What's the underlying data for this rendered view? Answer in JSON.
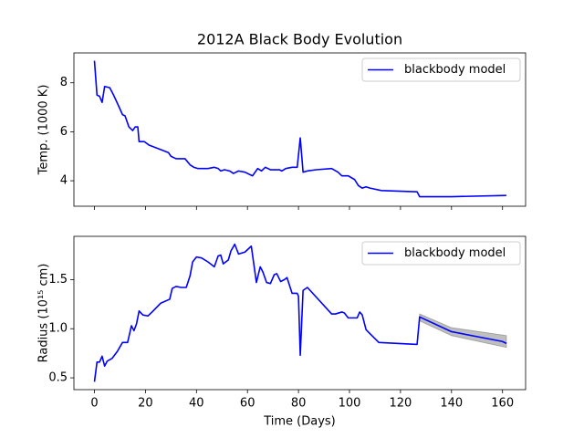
{
  "chart_data": [
    {
      "type": "line",
      "title": "2012A Black Body Evolution",
      "ylabel": "Temp. (1000 K)",
      "xlim": [
        -8.05,
        169.05
      ],
      "xticks": [
        0,
        20,
        40,
        60,
        80,
        100,
        120,
        140,
        160
      ],
      "show_xtick_labels": false,
      "ylim": [
        2.96,
        9.22
      ],
      "yticks": [
        4,
        6,
        8
      ],
      "legend": "upper right",
      "x": [
        0,
        1,
        2,
        3,
        4,
        6,
        7.5,
        9.5,
        11,
        12,
        13.5,
        15,
        16,
        17,
        17.5,
        19.5,
        21.5,
        26.5,
        29,
        30,
        32,
        35.5,
        37.5,
        39,
        40.5,
        44.5,
        47,
        48.5,
        49.5,
        51,
        53,
        54.5,
        56.5,
        59,
        62,
        64,
        65.5,
        67,
        69,
        70.5,
        72.5,
        73.5,
        75,
        77.5,
        79.5,
        80.7,
        81.8,
        83.5,
        87,
        93,
        95.5,
        97,
        99.5,
        102,
        103.5,
        105,
        106.5,
        108,
        112.5,
        126.5,
        127.5,
        140,
        161.5
      ],
      "series": [
        {
          "name": "blackbody model",
          "color": "#0000ff",
          "values": [
            8.9,
            7.5,
            7.45,
            7.2,
            7.85,
            7.8,
            7.5,
            7.05,
            6.7,
            6.65,
            6.2,
            6.05,
            6.2,
            6.2,
            5.6,
            5.6,
            5.45,
            5.25,
            5.15,
            5.0,
            4.9,
            4.9,
            4.65,
            4.55,
            4.5,
            4.5,
            4.55,
            4.5,
            4.4,
            4.45,
            4.4,
            4.3,
            4.4,
            4.35,
            4.2,
            4.5,
            4.4,
            4.55,
            4.45,
            4.45,
            4.45,
            4.4,
            4.5,
            4.55,
            4.55,
            5.75,
            4.35,
            4.4,
            4.45,
            4.5,
            4.35,
            4.2,
            4.2,
            4.05,
            3.8,
            3.7,
            3.75,
            3.7,
            3.6,
            3.55,
            3.35,
            3.35,
            3.4
          ]
        }
      ]
    },
    {
      "type": "line",
      "xlabel": "Time (Days)",
      "ylabel": "Radius (10¹⁵ cm)",
      "xlim": [
        -8.05,
        169.05
      ],
      "xticks": [
        0,
        20,
        40,
        60,
        80,
        100,
        120,
        140,
        160
      ],
      "show_xtick_labels": true,
      "ylim": [
        0.38,
        1.94
      ],
      "yticks": [
        0.5,
        1.0,
        1.5
      ],
      "legend": "upper right",
      "x": [
        0,
        1,
        2,
        3,
        4,
        5,
        7,
        9,
        11,
        13,
        14.5,
        15.5,
        16.5,
        17.5,
        19,
        21,
        23,
        26,
        29.5,
        30.5,
        32,
        34,
        36,
        37.5,
        38.5,
        40,
        42,
        44.5,
        47,
        48.5,
        49.5,
        50.5,
        52.5,
        53.5,
        55,
        56.5,
        59,
        61.5,
        63.5,
        65,
        66,
        67.5,
        69,
        70.5,
        71.5,
        73,
        74.5,
        75.5,
        77.5,
        79.5,
        80,
        80.7,
        81.8,
        83.5,
        93,
        94.5,
        97,
        98,
        99.5,
        101,
        103,
        104,
        105,
        106.5,
        108,
        111.5,
        126.5,
        127.5,
        140,
        160,
        161.5
      ],
      "series": [
        {
          "name": "blackbody model",
          "color": "#0000ff",
          "values": [
            0.46,
            0.66,
            0.66,
            0.72,
            0.62,
            0.67,
            0.7,
            0.77,
            0.86,
            0.86,
            1.03,
            0.98,
            1.05,
            1.18,
            1.14,
            1.13,
            1.18,
            1.26,
            1.3,
            1.41,
            1.43,
            1.42,
            1.42,
            1.54,
            1.68,
            1.73,
            1.72,
            1.68,
            1.63,
            1.74,
            1.75,
            1.66,
            1.7,
            1.79,
            1.86,
            1.76,
            1.78,
            1.84,
            1.47,
            1.63,
            1.58,
            1.47,
            1.46,
            1.55,
            1.56,
            1.48,
            1.5,
            1.52,
            1.36,
            1.36,
            1.33,
            0.73,
            1.39,
            1.42,
            1.15,
            1.15,
            1.17,
            1.16,
            1.11,
            1.11,
            1.11,
            1.17,
            1.14,
            0.99,
            0.95,
            0.86,
            0.84,
            1.12,
            0.97,
            0.87,
            0.85
          ]
        }
      ],
      "band": {
        "color": "#808080",
        "x": [
          127.5,
          140,
          161.5
        ],
        "upper": [
          1.15,
          1.01,
          0.93
        ],
        "lower": [
          1.08,
          0.93,
          0.81
        ]
      }
    }
  ]
}
